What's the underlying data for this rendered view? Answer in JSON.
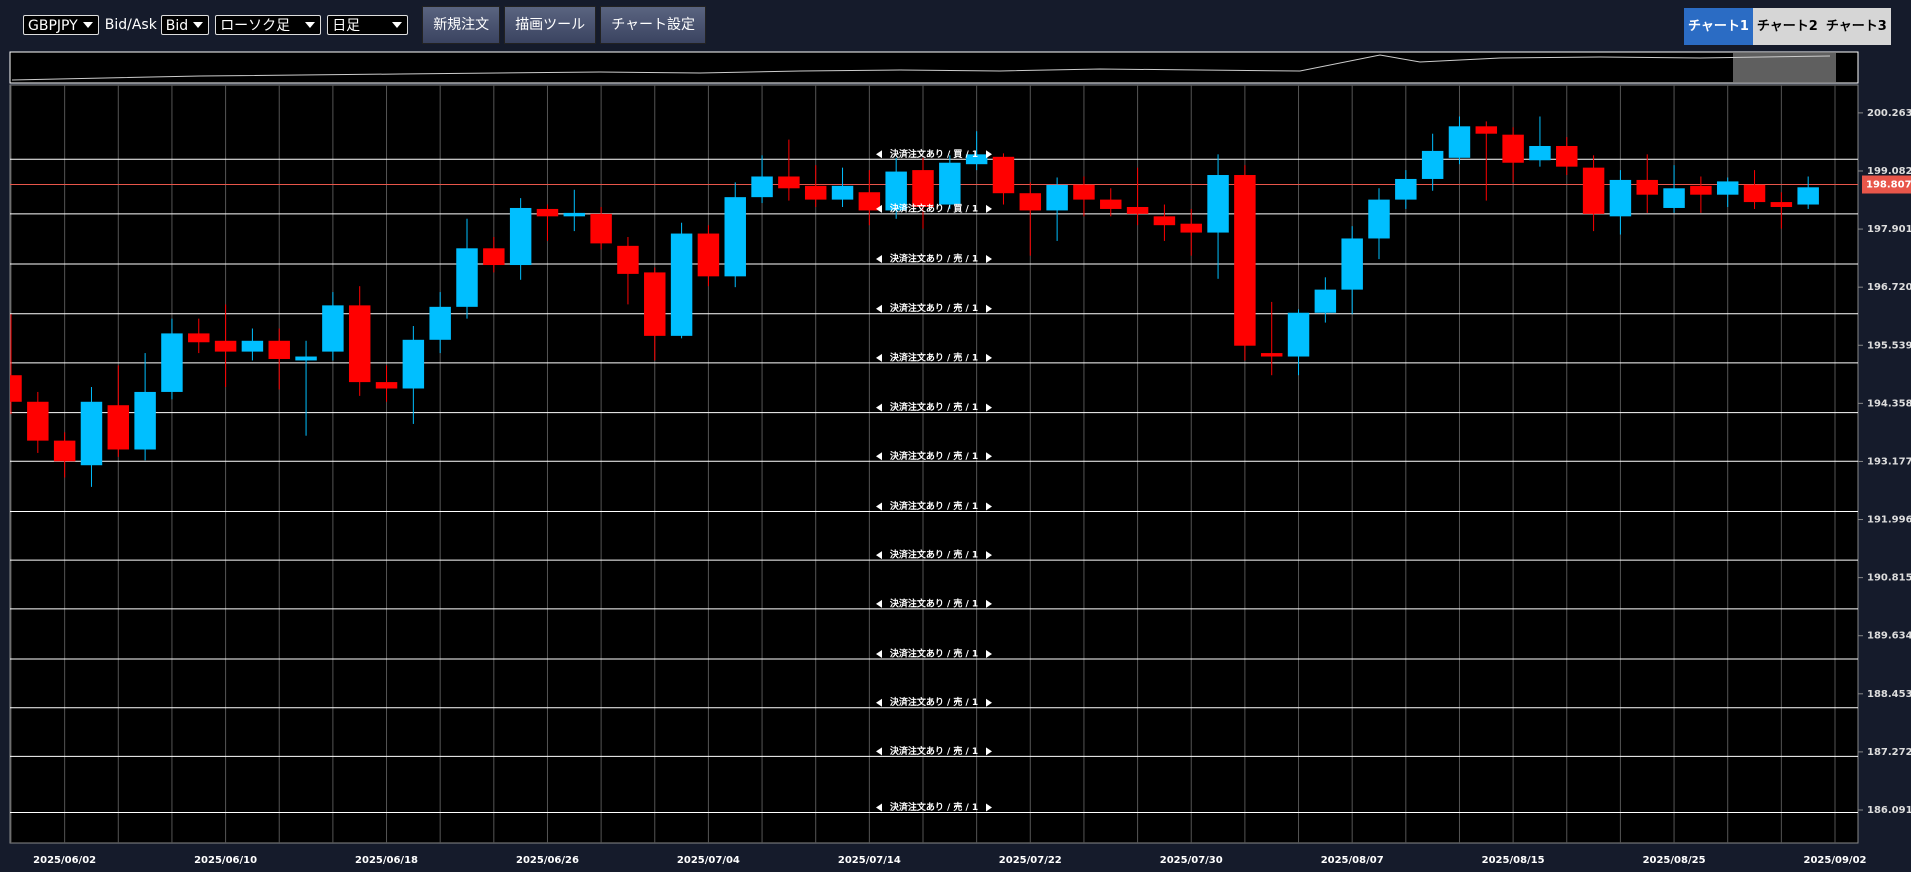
{
  "toolbar": {
    "symbol": "GBPJPY",
    "price_type_label": "Bid/Ask",
    "price_type": "Bid",
    "chart_style": "ローソク足",
    "timeframe": "日足",
    "buttons": [
      "新規注文",
      "描画ツール",
      "チャート設定"
    ],
    "tabs": [
      "チャート1",
      "チャート2",
      "チャート3"
    ]
  },
  "chart_data": {
    "type": "candlestick",
    "categories": [
      null,
      null,
      "2025/06/02",
      null,
      null,
      null,
      null,
      null,
      "2025/06/10",
      null,
      null,
      null,
      null,
      null,
      "2025/06/18",
      null,
      null,
      null,
      null,
      null,
      "2025/06/26",
      null,
      null,
      null,
      null,
      null,
      "2025/07/04",
      null,
      null,
      null,
      null,
      null,
      "2025/07/14",
      null,
      null,
      null,
      null,
      null,
      "2025/07/22",
      null,
      null,
      null,
      null,
      null,
      "2025/07/30",
      null,
      null,
      null,
      null,
      null,
      "2025/08/07",
      null,
      null,
      null,
      null,
      null,
      "2025/08/15",
      null,
      null,
      null,
      null,
      null,
      "2025/08/25",
      null,
      null,
      null,
      null,
      null,
      "2025/09/02"
    ],
    "ohlc": [
      [
        194.93,
        196.17,
        194.14,
        194.39
      ],
      [
        194.39,
        194.59,
        193.35,
        193.6
      ],
      [
        193.6,
        193.77,
        192.85,
        193.18
      ],
      [
        193.1,
        194.69,
        192.66,
        194.39
      ],
      [
        194.32,
        195.13,
        193.27,
        193.42
      ],
      [
        193.42,
        195.38,
        193.2,
        194.59
      ],
      [
        194.59,
        196.08,
        194.44,
        195.78
      ],
      [
        195.78,
        196.08,
        195.38,
        195.6
      ],
      [
        195.63,
        196.37,
        194.69,
        195.41
      ],
      [
        195.41,
        195.88,
        195.23,
        195.63
      ],
      [
        195.63,
        195.88,
        194.64,
        195.26
      ],
      [
        195.23,
        195.63,
        193.7,
        195.31
      ],
      [
        195.41,
        196.62,
        195.23,
        196.35
      ],
      [
        196.35,
        196.74,
        194.51,
        194.79
      ],
      [
        194.79,
        195.13,
        194.39,
        194.66
      ],
      [
        194.66,
        195.93,
        193.94,
        195.65
      ],
      [
        195.65,
        196.62,
        195.38,
        196.32
      ],
      [
        196.32,
        198.11,
        196.08,
        197.51
      ],
      [
        197.51,
        197.74,
        197.02,
        197.17
      ],
      [
        197.17,
        198.53,
        196.87,
        198.33
      ],
      [
        198.31,
        198.4,
        197.66,
        198.16
      ],
      [
        198.16,
        198.7,
        197.86,
        198.23
      ],
      [
        198.21,
        198.35,
        197.49,
        197.61
      ],
      [
        197.56,
        197.74,
        196.37,
        196.99
      ],
      [
        197.02,
        197.12,
        195.23,
        195.73
      ],
      [
        195.73,
        198.03,
        195.68,
        197.81
      ],
      [
        197.81,
        197.98,
        196.74,
        196.94
      ],
      [
        196.94,
        198.85,
        196.72,
        198.55
      ],
      [
        198.55,
        199.4,
        198.43,
        198.97
      ],
      [
        198.97,
        199.72,
        198.48,
        198.73
      ],
      [
        198.78,
        199.2,
        198.35,
        198.5
      ],
      [
        198.5,
        199.15,
        198.35,
        198.78
      ],
      [
        198.65,
        199.1,
        197.98,
        198.28
      ],
      [
        198.28,
        199.35,
        198.11,
        199.07
      ],
      [
        199.1,
        199.35,
        197.91,
        198.35
      ],
      [
        198.4,
        199.4,
        198.31,
        199.25
      ],
      [
        199.22,
        199.89,
        199.1,
        199.42
      ],
      [
        199.37,
        199.44,
        198.4,
        198.63
      ],
      [
        198.63,
        198.85,
        197.36,
        198.28
      ],
      [
        198.28,
        198.95,
        197.66,
        198.8
      ],
      [
        198.8,
        198.97,
        198.16,
        198.5
      ],
      [
        198.5,
        198.73,
        198.16,
        198.31
      ],
      [
        198.35,
        199.15,
        197.98,
        198.21
      ],
      [
        198.16,
        198.4,
        197.66,
        197.98
      ],
      [
        198.01,
        198.31,
        197.36,
        197.83
      ],
      [
        197.83,
        199.42,
        196.89,
        199.0
      ],
      [
        199.0,
        199.2,
        195.23,
        195.53
      ],
      [
        195.38,
        196.42,
        194.93,
        195.31
      ],
      [
        195.31,
        196.27,
        194.93,
        196.2
      ],
      [
        196.2,
        196.92,
        196.0,
        196.67
      ],
      [
        196.67,
        197.96,
        196.17,
        197.71
      ],
      [
        197.71,
        198.73,
        197.29,
        198.5
      ],
      [
        198.5,
        199.1,
        198.31,
        198.92
      ],
      [
        198.92,
        199.84,
        198.68,
        199.49
      ],
      [
        199.35,
        200.19,
        199.22,
        199.99
      ],
      [
        199.99,
        200.09,
        198.48,
        199.84
      ],
      [
        199.82,
        199.97,
        198.85,
        199.25
      ],
      [
        199.3,
        200.19,
        199.17,
        199.59
      ],
      [
        199.59,
        199.77,
        199.0,
        199.17
      ],
      [
        199.15,
        199.4,
        197.86,
        198.21
      ],
      [
        198.16,
        199.1,
        197.79,
        198.9
      ],
      [
        198.9,
        199.42,
        198.23,
        198.6
      ],
      [
        198.33,
        199.2,
        198.23,
        198.73
      ],
      [
        198.78,
        198.97,
        198.23,
        198.6
      ],
      [
        198.6,
        198.95,
        198.35,
        198.87
      ],
      [
        198.8,
        199.1,
        198.31,
        198.45
      ],
      [
        198.45,
        198.65,
        197.91,
        198.35
      ],
      [
        198.4,
        198.97,
        198.31,
        198.75
      ],
      null
    ],
    "up_color": "#00bfff",
    "down_color": "#ff0000",
    "ylim": [
      185.42,
      200.83
    ],
    "yticks": [
      200.263,
      199.082,
      197.901,
      {
        "value": 196.72,
        "label": "196.720"
      },
      195.539,
      194.358,
      193.177,
      191.996,
      190.815,
      189.634,
      188.453,
      187.272,
      186.091
    ],
    "current_price": 198.807,
    "current_price_color": "#e8564a",
    "orders": [
      {
        "price": 199.32,
        "label": "決済注文あり / 買 / 1"
      },
      {
        "price": 198.21,
        "label": "決済注文あり / 買 / 1"
      },
      {
        "price": 197.19,
        "label": "決済注文あり / 売 / 1"
      },
      {
        "price": 196.18,
        "label": "決済注文あり / 売 / 1"
      },
      {
        "price": 195.18,
        "label": "決済注文あり / 売 / 1"
      },
      {
        "price": 194.17,
        "label": "決済注文あり / 売 / 1"
      },
      {
        "price": 193.18,
        "label": "決済注文あり / 売 / 1"
      },
      {
        "price": 192.16,
        "label": "決済注文あり / 売 / 1"
      },
      {
        "price": 191.17,
        "label": "決済注文あり / 売 / 1"
      },
      {
        "price": 190.18,
        "label": "決済注文あり / 売 / 1"
      },
      {
        "price": 189.16,
        "label": "決済注文あり / 売 / 1"
      },
      {
        "price": 188.17,
        "label": "決済注文あり / 売 / 1"
      },
      {
        "price": 187.18,
        "label": "決済注文あり / 売 / 1"
      },
      {
        "price": 186.04,
        "label": "決済注文あり / 売 / 1"
      }
    ]
  }
}
